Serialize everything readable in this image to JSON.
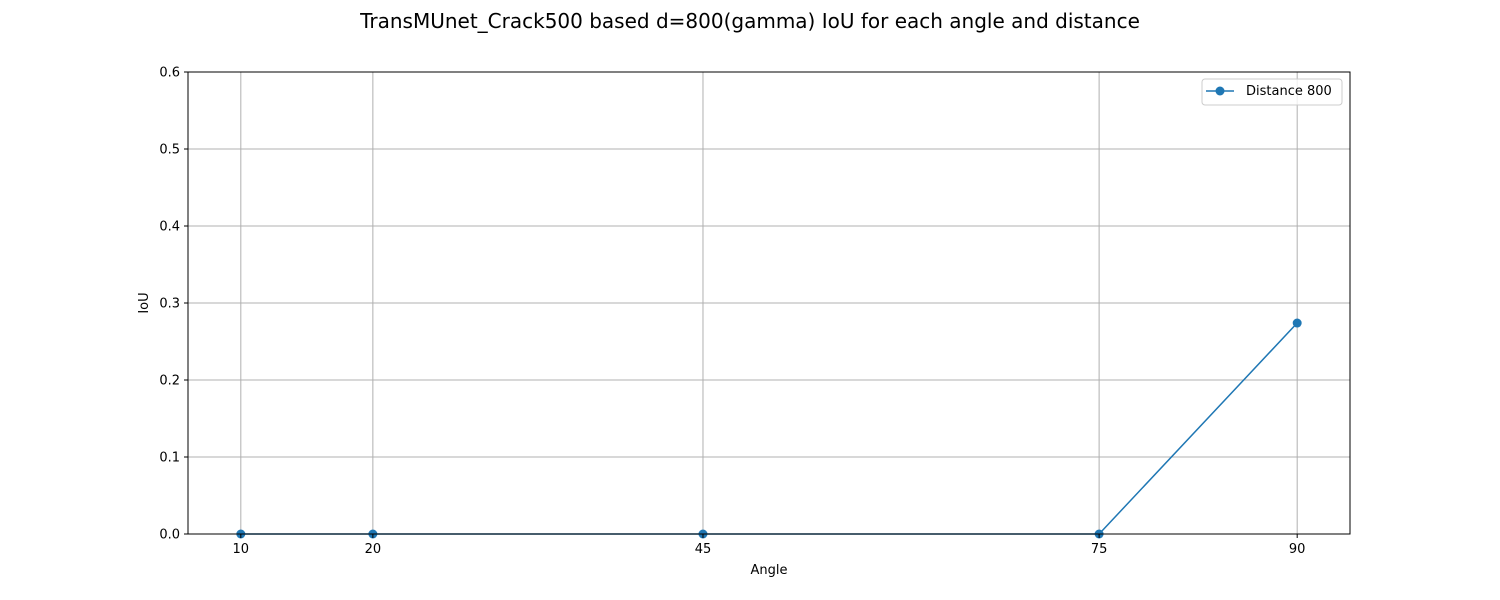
{
  "chart_data": {
    "type": "line",
    "title": "TransMUnet_Crack500 based d=800(gamma) IoU for each angle and distance",
    "xlabel": "Angle",
    "ylabel": "IoU",
    "x": [
      10,
      20,
      45,
      75,
      90
    ],
    "x_ticks": [
      "10",
      "20",
      "45",
      "75",
      "90"
    ],
    "y_ticks": [
      "0.0",
      "0.1",
      "0.2",
      "0.3",
      "0.4",
      "0.5",
      "0.6"
    ],
    "xlim": [
      6,
      94
    ],
    "ylim": [
      0,
      0.6
    ],
    "grid": true,
    "legend_position": "top-right",
    "series": [
      {
        "name": "Distance 800",
        "values": [
          0.0,
          0.0,
          0.0,
          0.0,
          0.274
        ],
        "color": "#1f77b4",
        "marker": "circle"
      }
    ]
  }
}
